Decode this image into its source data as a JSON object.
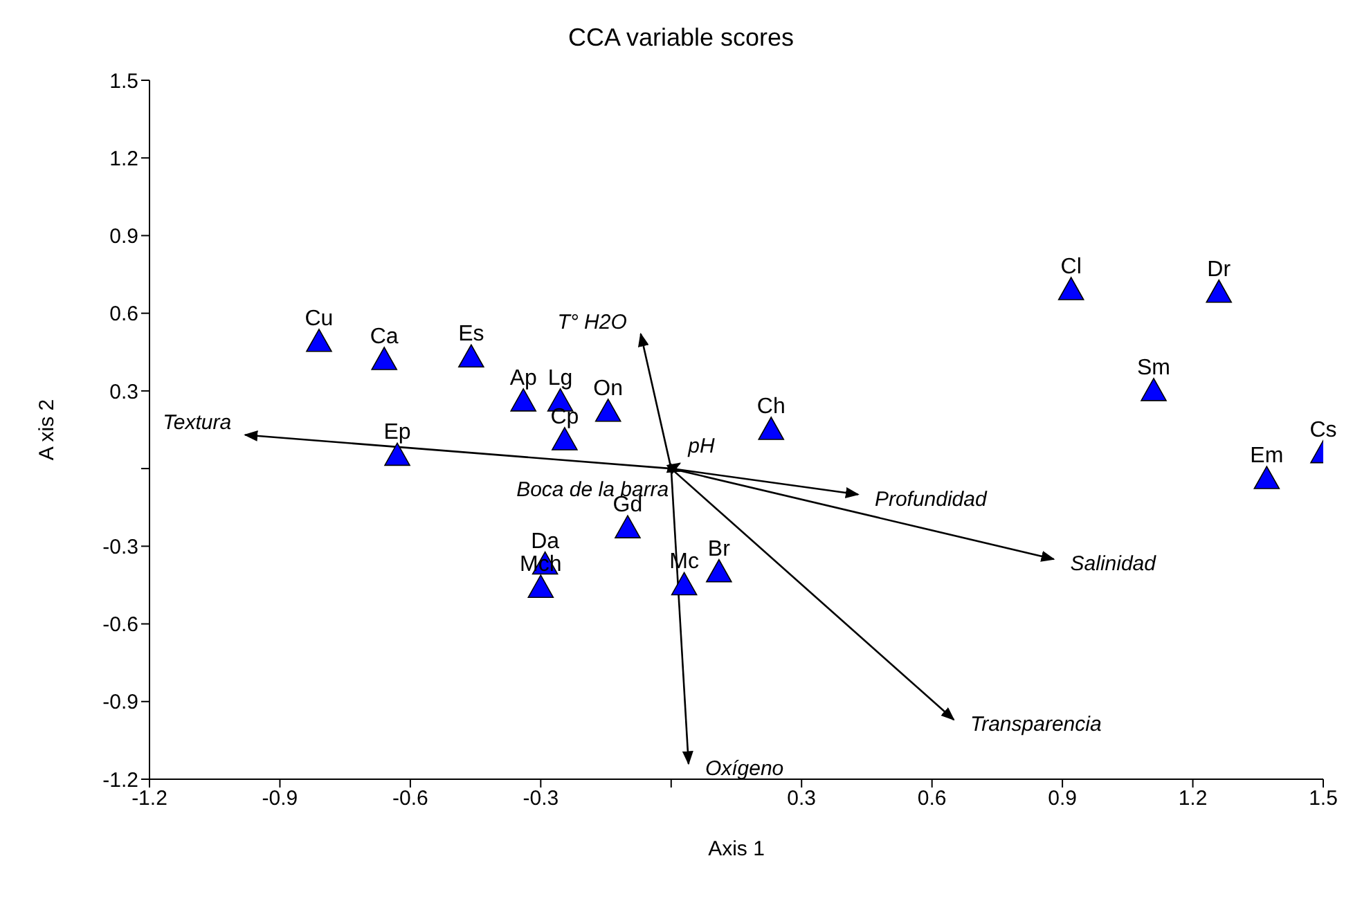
{
  "chart_data": {
    "type": "scatter",
    "title": "CCA variable scores",
    "xlabel": "Axis 1",
    "ylabel": "A xis 2",
    "xlim": [
      -1.2,
      1.5
    ],
    "ylim": [
      -1.2,
      1.5
    ],
    "xticks": [
      -1.2,
      -0.9,
      -0.6,
      -0.3,
      {
        "value": 0,
        "label": null
      },
      0.3,
      0.6,
      0.9,
      1.2,
      1.5
    ],
    "yticks": [
      -1.2,
      -0.9,
      -0.6,
      -0.3,
      {
        "value": 0,
        "label": null
      },
      0.3,
      0.6,
      0.9,
      1.2,
      1.5
    ],
    "grid": false,
    "legend": false,
    "series": [
      {
        "color": "#0000ff",
        "marker": "triangle",
        "x": [
          -0.81,
          -0.66,
          -0.46,
          -0.34,
          -0.255,
          -0.145,
          -0.245,
          -0.63,
          0.23,
          0.92,
          1.26,
          1.11,
          1.37,
          1.5,
          -0.1,
          -0.29,
          -0.3,
          0.03,
          0.11
        ],
        "values": [
          0.49,
          0.42,
          0.43,
          0.26,
          0.26,
          0.22,
          0.11,
          0.05,
          0.15,
          0.69,
          0.68,
          0.3,
          -0.04,
          0.06,
          -0.23,
          -0.37,
          -0.46,
          -0.45,
          -0.4
        ]
      },
      {
        "type": "line",
        "name": "Textura",
        "color": "#000000",
        "x": [
          0,
          -0.98
        ],
        "values": [
          0,
          0.13
        ]
      },
      {
        "type": "line",
        "name": "T° H2O",
        "color": "#000000",
        "x": [
          0,
          -0.07
        ],
        "values": [
          0,
          0.52
        ]
      },
      {
        "type": "line",
        "name": "pH",
        "color": "#000000",
        "x": [
          0,
          0.02
        ],
        "values": [
          0,
          0.02
        ]
      },
      {
        "type": "line",
        "name": "Boca de la barra",
        "color": "#000000",
        "x": [
          0,
          0.02
        ],
        "values": [
          0,
          -0.01
        ]
      },
      {
        "type": "line",
        "name": "Profundidad",
        "color": "#000000",
        "x": [
          0,
          0.43
        ],
        "values": [
          0,
          -0.1
        ]
      },
      {
        "type": "line",
        "name": "Salinidad",
        "color": "#000000",
        "x": [
          0,
          0.88
        ],
        "values": [
          0,
          -0.35
        ]
      },
      {
        "type": "line",
        "name": "Transparencia",
        "color": "#000000",
        "x": [
          0,
          0.65
        ],
        "values": [
          0,
          -0.97
        ]
      },
      {
        "type": "line",
        "name": "Oxígeno",
        "color": "#000000",
        "x": [
          0,
          0.04
        ],
        "values": [
          0,
          -1.14
        ]
      }
    ],
    "annotations": [
      {
        "text": "Cu",
        "x": -0.81,
        "y": 0.49
      },
      {
        "text": "Ca",
        "x": -0.66,
        "y": 0.42
      },
      {
        "text": "Es",
        "x": -0.46,
        "y": 0.43
      },
      {
        "text": "Ap",
        "x": -0.34,
        "y": 0.26
      },
      {
        "text": "Lg",
        "x": -0.255,
        "y": 0.26
      },
      {
        "text": "On",
        "x": -0.145,
        "y": 0.22
      },
      {
        "text": "Cp",
        "x": -0.245,
        "y": 0.11
      },
      {
        "text": "Ep",
        "x": -0.63,
        "y": 0.05
      },
      {
        "text": "Ch",
        "x": 0.23,
        "y": 0.15
      },
      {
        "text": "Cl",
        "x": 0.92,
        "y": 0.69
      },
      {
        "text": "Dr",
        "x": 1.26,
        "y": 0.68
      },
      {
        "text": "Sm",
        "x": 1.11,
        "y": 0.3
      },
      {
        "text": "Em",
        "x": 1.37,
        "y": -0.04
      },
      {
        "text": "Cs",
        "x": 1.5,
        "y": 0.06
      },
      {
        "text": "Gd",
        "x": -0.1,
        "y": -0.23
      },
      {
        "text": "Da",
        "x": -0.29,
        "y": -0.37
      },
      {
        "text": "Mch",
        "x": -0.3,
        "y": -0.46
      },
      {
        "text": "Mc",
        "x": 0.03,
        "y": -0.45
      },
      {
        "text": "Br",
        "x": 0.11,
        "y": -0.4
      }
    ]
  }
}
